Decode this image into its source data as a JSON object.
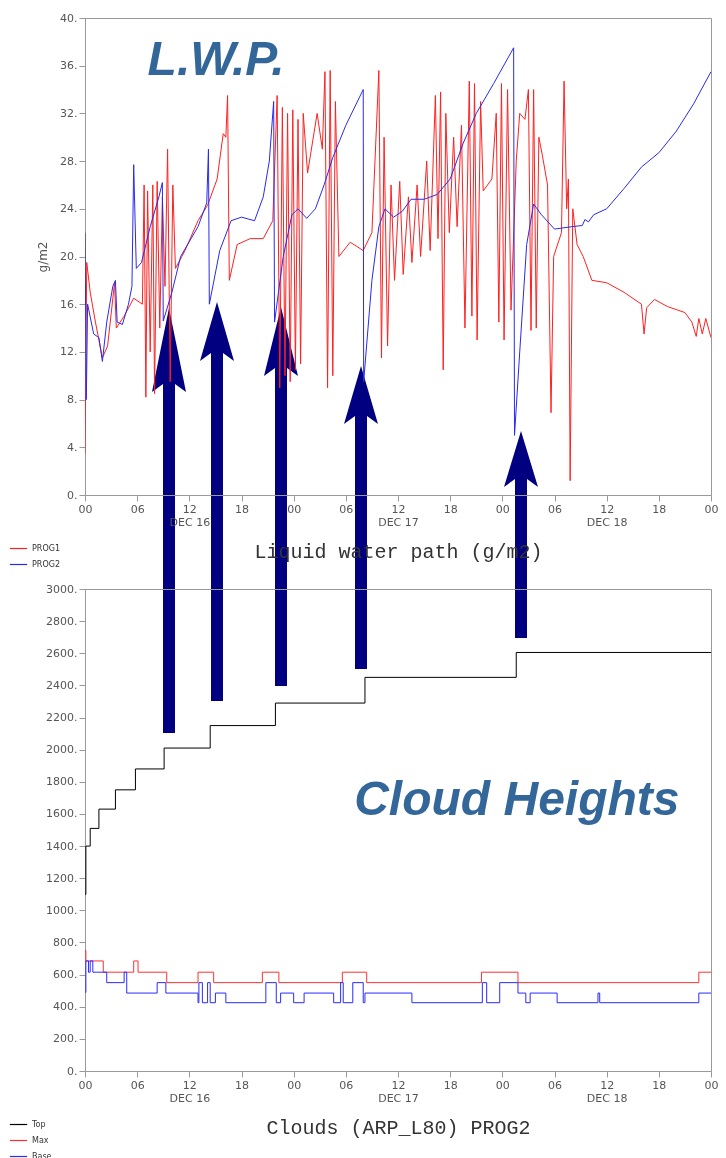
{
  "chart_data": [
    {
      "type": "line",
      "ylabel": "g/m2",
      "xlabel": "Liquid water path (g/m2)",
      "annotations": [
        "L.W.P."
      ],
      "legend": "bottom left",
      "xlim": [
        "--12-16T00:00",
        "--12-19T00:00"
      ],
      "ylim": [
        0,
        40
      ],
      "xticks": [
        {
          "value": "--12-16T00:00",
          "label": "00"
        },
        {
          "value": "--12-16T06:00",
          "label": "06"
        },
        {
          "value": "--12-16T12:00",
          "label": "12\nDEC 16"
        },
        {
          "value": "--12-16T18:00",
          "label": "18"
        },
        {
          "value": "--12-17T00:00",
          "label": "00"
        },
        {
          "value": "--12-17T06:00",
          "label": "06"
        },
        {
          "value": "--12-17T12:00",
          "label": "12\nDEC 17"
        },
        {
          "value": "--12-17T18:00",
          "label": "18"
        },
        {
          "value": "--12-18T00:00",
          "label": "00"
        },
        {
          "value": "--12-18T06:00",
          "label": "06"
        },
        {
          "value": "--12-18T12:00",
          "label": "12\nDEC 18"
        },
        {
          "value": "--12-18T18:00",
          "label": "18"
        },
        {
          "value": "--12-19T00:00",
          "label": "00"
        }
      ],
      "yticks": [
        {
          "value": 0,
          "label": "0."
        },
        {
          "value": 4,
          "label": "4."
        },
        {
          "value": 8,
          "label": "8."
        },
        {
          "value": 12,
          "label": "12."
        },
        {
          "value": 16,
          "label": "16."
        },
        {
          "value": 20,
          "label": "20."
        },
        {
          "value": 24,
          "label": "24."
        },
        {
          "value": 28,
          "label": "28."
        },
        {
          "value": 32,
          "label": "32."
        },
        {
          "value": 36,
          "label": "36."
        },
        {
          "value": 40,
          "label": "40."
        }
      ],
      "series": [
        {
          "name": "PROG1",
          "color": "#ff2020",
          "x": [
            "--12-16T00:00",
            "--12-16T00:12",
            "--12-16T00:36",
            "--12-16T01:12",
            "--12-16T02:00",
            "--12-16T02:36",
            "--12-16T03:24",
            "--12-16T03:36",
            "--12-16T04:30",
            "--12-16T05:36",
            "--12-16T06:36",
            "--12-16T06:48",
            "--12-16T07:00",
            "--12-16T07:12",
            "--12-16T07:30",
            "--12-16T07:48",
            "--12-16T08:00",
            "--12-16T08:18",
            "--12-16T08:36",
            "--12-16T08:54",
            "--12-16T09:12",
            "--12-16T09:30",
            "--12-16T09:48",
            "--12-16T10:06",
            "--12-16T10:24",
            "--12-16T11:30",
            "--12-16T13:00",
            "--12-16T14:06",
            "--12-16T15:12",
            "--12-16T15:54",
            "--12-16T16:12",
            "--12-16T16:24",
            "--12-16T16:36",
            "--12-16T17:30",
            "--12-16T19:00",
            "--12-16T20:30",
            "--12-16T21:36",
            "--12-16T22:06",
            "--12-16T22:24",
            "--12-16T22:42",
            "--12-16T23:00",
            "--12-16T23:18",
            "--12-16T23:36",
            "--12-16T23:54",
            "--12-17T00:12",
            "--12-17T00:30",
            "--12-17T00:48",
            "--12-17T01:06",
            "--12-17T01:36",
            "--12-17T02:42",
            "--12-17T03:18",
            "--12-17T03:36",
            "--12-17T03:54",
            "--12-17T04:12",
            "--12-17T04:30",
            "--12-17T04:48",
            "--12-17T05:12",
            "--12-17T06:30",
            "--12-17T08:00",
            "--12-17T09:00",
            "--12-17T09:48",
            "--12-17T10:06",
            "--12-17T10:24",
            "--12-17T10:48",
            "--12-17T11:12",
            "--12-17T11:36",
            "--12-17T12:12",
            "--12-17T12:36",
            "--12-17T13:12",
            "--12-17T13:36",
            "--12-17T14:12",
            "--12-17T14:36",
            "--12-17T15:18",
            "--12-17T15:42",
            "--12-17T16:18",
            "--12-17T16:36",
            "--12-17T16:54",
            "--12-17T17:12",
            "--12-17T17:30",
            "--12-17T17:54",
            "--12-17T18:24",
            "--12-17T18:48",
            "--12-17T19:18",
            "--12-17T19:42",
            "--12-17T20:12",
            "--12-17T20:30",
            "--12-17T20:48",
            "--12-17T21:06",
            "--12-17T21:30",
            "--12-17T21:48",
            "--12-17T22:48",
            "--12-17T23:18",
            "--12-17T23:36",
            "--12-17T23:54",
            "--12-18T00:12",
            "--12-18T00:36",
            "--12-18T01:00",
            "--12-18T01:36",
            "--12-18T02:00",
            "--12-18T02:36",
            "--12-18T03:00",
            "--12-18T03:18",
            "--12-18T03:36",
            "--12-18T03:54",
            "--12-18T04:12",
            "--12-18T04:36",
            "--12-18T05:12",
            "--12-18T05:36",
            "--12-18T05:54",
            "--12-18T06:48",
            "--12-18T07:06",
            "--12-18T07:24",
            "--12-18T07:36",
            "--12-18T07:48",
            "--12-18T08:06",
            "--12-18T08:36",
            "--12-18T09:18",
            "--12-18T10:18",
            "--12-18T12:00",
            "--12-18T14:00",
            "--12-18T16:00",
            "--12-18T16:18",
            "--12-18T16:36",
            "--12-18T17:30",
            "--12-18T19:00",
            "--12-18T21:00",
            "--12-18T21:48",
            "--12-18T22:18",
            "--12-18T22:36",
            "--12-18T23:00",
            "--12-18T23:24",
            "--12-19T00:00"
          ],
          "values": [
            3.5,
            19.5,
            17,
            14.5,
            11.5,
            12.5,
            17.8,
            14,
            15,
            16.5,
            16,
            26,
            8.2,
            25.5,
            12,
            26,
            8.5,
            26.3,
            14,
            25,
            17.5,
            29,
            9.5,
            26,
            19,
            20.5,
            23,
            24.3,
            26.5,
            30.3,
            30,
            33.5,
            18,
            21,
            21.5,
            21.5,
            23,
            33.5,
            9,
            32.5,
            10,
            32,
            9.5,
            32.3,
            10.5,
            31.5,
            11,
            32,
            27,
            32,
            29,
            35.5,
            9,
            35.6,
            10,
            33,
            20,
            21.2,
            20.5,
            22,
            35.6,
            11.5,
            30,
            12.5,
            26,
            18,
            26.3,
            18.5,
            25,
            19.5,
            26,
            20,
            28,
            20.5,
            33.5,
            21.5,
            33.8,
            10.5,
            32,
            22,
            30,
            22.5,
            31,
            14,
            34.7,
            15,
            34.5,
            13,
            33,
            25.5,
            26.5,
            32,
            14.5,
            34.5,
            13,
            34,
            15.5,
            28,
            32,
            31.5,
            34,
            13.8,
            34,
            14,
            30,
            28.5,
            26,
            6.9,
            20,
            22,
            34.7,
            24,
            26.5,
            1.2,
            24,
            21,
            20,
            18,
            17.8,
            17,
            16,
            13.5,
            15.7,
            16.4,
            15.8,
            15.3,
            14.5,
            13.3,
            14.8,
            13.5,
            14.8,
            13.2
          ]
        },
        {
          "name": "PROG2",
          "color": "#2a2aee",
          "x": [
            "--12-16T00:00",
            "--12-16T00:09",
            "--12-16T00:18",
            "--12-16T01:00",
            "--12-16T01:36",
            "--12-16T02:00",
            "--12-16T02:30",
            "--12-16T03:12",
            "--12-16T03:30",
            "--12-16T03:42",
            "--12-16T04:18",
            "--12-16T05:00",
            "--12-16T05:24",
            "--12-16T05:36",
            "--12-16T05:54",
            "--12-16T06:30",
            "--12-16T07:30",
            "--12-16T08:30",
            "--12-16T08:54",
            "--12-16T09:00",
            "--12-16T10:00",
            "--12-16T11:00",
            "--12-16T13:00",
            "--12-16T14:00",
            "--12-16T14:12",
            "--12-16T14:18",
            "--12-16T15:30",
            "--12-16T16:48",
            "--12-16T18:00",
            "--12-16T19:30",
            "--12-16T20:30",
            "--12-16T21:12",
            "--12-16T21:42",
            "--12-16T21:48",
            "--12-16T22:48",
            "--12-16T23:48",
            "--12-17T00:30",
            "--12-17T01:30",
            "--12-17T02:30",
            "--12-17T03:30",
            "--12-17T04:30",
            "--12-17T06:00",
            "--12-17T08:00",
            "--12-17T08:03",
            "--12-17T09:00",
            "--12-17T09:48",
            "--12-17T10:30",
            "--12-17T11:30",
            "--12-17T12:30",
            "--12-17T13:30",
            "--12-17T15:00",
            "--12-17T16:30",
            "--12-17T18:00",
            "--12-17T19:30",
            "--12-17T21:00",
            "--12-17T23:00",
            "--12-18T01:18",
            "--12-18T01:24",
            "--12-18T02:00",
            "--12-18T02:48",
            "--12-18T03:36",
            "--12-18T04:30",
            "--12-18T06:00",
            "--12-18T08:00",
            "--12-18T09:12",
            "--12-18T09:30",
            "--12-18T09:54",
            "--12-18T10:30",
            "--12-18T12:00",
            "--12-18T14:00",
            "--12-18T16:00",
            "--12-18T18:00",
            "--12-18T20:00",
            "--12-18T22:00",
            "--12-19T00:00"
          ],
          "values": [
            22,
            8,
            16,
            13.5,
            13.2,
            11.2,
            14.5,
            17.5,
            18,
            14.5,
            14.3,
            16,
            17.5,
            27.7,
            19,
            19.5,
            22.5,
            25,
            26.2,
            14.6,
            17,
            20,
            22.5,
            24.5,
            29,
            16,
            20.5,
            23,
            23.3,
            23,
            25,
            28,
            33,
            14.5,
            20,
            23.5,
            24,
            23.2,
            24,
            26,
            28.3,
            31,
            34,
            9.5,
            18,
            22.5,
            24,
            23.3,
            23.8,
            24.8,
            24.8,
            25.2,
            26.5,
            29.5,
            32,
            34.5,
            37.5,
            5,
            12,
            21,
            24.4,
            23.5,
            22.3,
            22.5,
            22.6,
            23.1,
            22.9,
            23.5,
            24,
            25.7,
            27.5,
            28.7,
            30.5,
            32.8,
            35.5
          ]
        }
      ]
    },
    {
      "type": "step",
      "xlabel": "Clouds (ARP_L80) PROG2",
      "annotations": [
        "Cloud Heights"
      ],
      "legend": "bottom left",
      "xlim": [
        "--12-16T00:00",
        "--12-19T00:00"
      ],
      "ylim": [
        0,
        3000
      ],
      "xticks": [
        {
          "value": "--12-16T00:00",
          "label": "00"
        },
        {
          "value": "--12-16T06:00",
          "label": "06"
        },
        {
          "value": "--12-16T12:00",
          "label": "12\nDEC 16"
        },
        {
          "value": "--12-16T18:00",
          "label": "18"
        },
        {
          "value": "--12-17T00:00",
          "label": "00"
        },
        {
          "value": "--12-17T06:00",
          "label": "06"
        },
        {
          "value": "--12-17T12:00",
          "label": "12\nDEC 17"
        },
        {
          "value": "--12-17T18:00",
          "label": "18"
        },
        {
          "value": "--12-18T00:00",
          "label": "00"
        },
        {
          "value": "--12-18T06:00",
          "label": "06"
        },
        {
          "value": "--12-18T12:00",
          "label": "12\nDEC 18"
        },
        {
          "value": "--12-18T18:00",
          "label": "18"
        },
        {
          "value": "--12-19T00:00",
          "label": "00"
        }
      ],
      "yticks": [
        {
          "value": 0,
          "label": "0."
        },
        {
          "value": 200,
          "label": "200."
        },
        {
          "value": 400,
          "label": "400."
        },
        {
          "value": 600,
          "label": "600."
        },
        {
          "value": 800,
          "label": "800."
        },
        {
          "value": 1000,
          "label": "1000."
        },
        {
          "value": 1200,
          "label": "1200."
        },
        {
          "value": 1400,
          "label": "1400."
        },
        {
          "value": 1600,
          "label": "1600."
        },
        {
          "value": 1800,
          "label": "1800."
        },
        {
          "value": 2000,
          "label": "2000."
        },
        {
          "value": 2200,
          "label": "2200."
        },
        {
          "value": 2400,
          "label": "2400."
        },
        {
          "value": 2600,
          "label": "2600."
        },
        {
          "value": 2800,
          "label": "2800."
        },
        {
          "value": 3000,
          "label": "3000."
        }
      ],
      "series": [
        {
          "name": "Top",
          "color": "#000000",
          "x": [
            "--12-16T00:00",
            "--12-16T00:06",
            "--12-16T00:36",
            "--12-16T01:36",
            "--12-16T03:30",
            "--12-16T05:48",
            "--12-16T09:06",
            "--12-16T14:24",
            "--12-16T21:54",
            "--12-17T08:12",
            "--12-18T01:36",
            "--12-19T00:00"
          ],
          "values": [
            1100,
            1400,
            1510,
            1630,
            1750,
            1880,
            2010,
            2150,
            2290,
            2450,
            2605,
            2605
          ]
        },
        {
          "name": "Max",
          "color": "#ff3030",
          "x": [
            "--12-16T00:00",
            "--12-16T00:06",
            "--12-16T02:06",
            "--12-16T05:36",
            "--12-16T06:06",
            "--12-16T09:24",
            "--12-16T13:00",
            "--12-16T14:48",
            "--12-16T20:24",
            "--12-16T22:18",
            "--12-17T05:36",
            "--12-17T08:24",
            "--12-17T21:36",
            "--12-18T01:48",
            "--12-18T22:36",
            "--12-19T00:00"
          ],
          "values": [
            750,
            685,
            615,
            685,
            615,
            550,
            615,
            550,
            615,
            550,
            615,
            550,
            615,
            550,
            615,
            615
          ]
        },
        {
          "name": "Base",
          "color": "#2a2aff",
          "x": [
            "--12-16T00:00",
            "--12-16T00:06",
            "--12-16T00:24",
            "--12-16T00:36",
            "--12-16T00:54",
            "--12-16T01:18",
            "--12-16T02:30",
            "--12-16T04:30",
            "--12-16T04:48",
            "--12-16T08:18",
            "--12-16T09:18",
            "--12-16T13:00",
            "--12-16T13:06",
            "--12-16T13:30",
            "--12-16T14:06",
            "--12-16T14:24",
            "--12-16T15:00",
            "--12-16T16:12",
            "--12-16T20:48",
            "--12-16T22:00",
            "--12-16T22:30",
            "--12-17T00:00",
            "--12-17T01:12",
            "--12-17T04:36",
            "--12-17T05:24",
            "--12-17T05:42",
            "--12-17T06:48",
            "--12-17T08:00",
            "--12-17T08:12",
            "--12-17T13:36",
            "--12-17T21:42",
            "--12-17T22:12",
            "--12-17T23:42",
            "--12-18T01:48",
            "--12-18T02:42",
            "--12-18T03:12",
            "--12-18T06:18",
            "--12-18T11:00",
            "--12-18T11:12",
            "--12-18T22:36",
            "--12-19T00:00"
          ],
          "values": [
            490,
            685,
            615,
            685,
            615,
            615,
            550,
            615,
            485,
            550,
            485,
            425,
            550,
            425,
            550,
            425,
            485,
            425,
            550,
            425,
            485,
            425,
            485,
            425,
            550,
            425,
            550,
            425,
            485,
            425,
            550,
            425,
            550,
            485,
            425,
            485,
            425,
            485,
            425,
            485,
            485
          ]
        }
      ]
    }
  ]
}
